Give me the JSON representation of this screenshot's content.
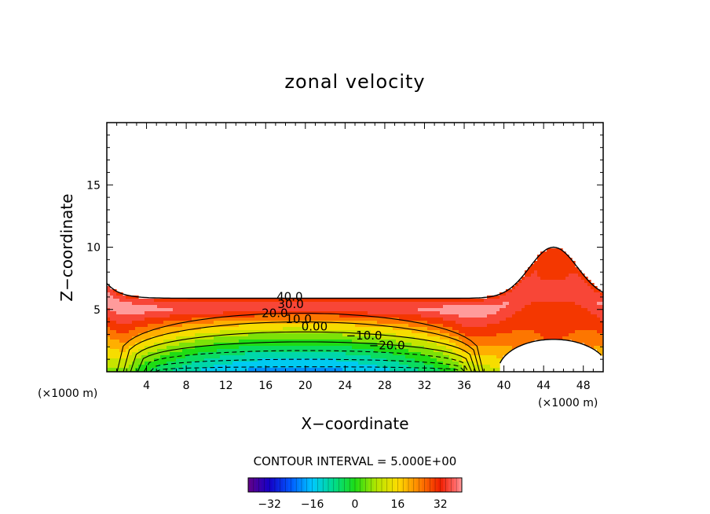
{
  "chart_data": {
    "type": "contour",
    "title": "zonal velocity",
    "xlabel": "X−coordinate",
    "ylabel": "Z−coordinate",
    "x_unit": "(×1000 m)",
    "y_unit": "(×1000 m)",
    "xlim": [
      0,
      50
    ],
    "ylim": [
      0,
      20
    ],
    "xticks": [
      4,
      8,
      12,
      16,
      20,
      24,
      28,
      32,
      36,
      40,
      44,
      48
    ],
    "yticks": [
      5,
      10,
      15
    ],
    "contour_interval_text": "CONTOUR INTERVAL = 5.000E+00",
    "contour_interval": 5,
    "contour_labels": [
      {
        "text": "40.0",
        "x": 17.1,
        "z": 5.7
      },
      {
        "text": "30.0",
        "x": 17.2,
        "z": 5.1
      },
      {
        "text": "20.0",
        "x": 15.6,
        "z": 4.4
      },
      {
        "text": "10.0",
        "x": 18.0,
        "z": 3.9
      },
      {
        "text": "0.00",
        "x": 19.6,
        "z": 3.3
      },
      {
        "text": "−10.0",
        "x": 24.1,
        "z": 2.6
      },
      {
        "text": "−20.0",
        "x": 26.4,
        "z": 1.8
      }
    ],
    "field": {
      "jet_center_x": 20,
      "jet_min": -38,
      "upper_boundary_z": 5.9,
      "max_value": 42,
      "mountain_center_x": 45,
      "mountain_top_z": 10,
      "wake_value": 34,
      "dead_zone_top_z": 2.6
    },
    "colorbar": {
      "ticks": [
        -32,
        -16,
        0,
        16,
        32
      ],
      "range": [
        -40,
        40
      ]
    }
  }
}
